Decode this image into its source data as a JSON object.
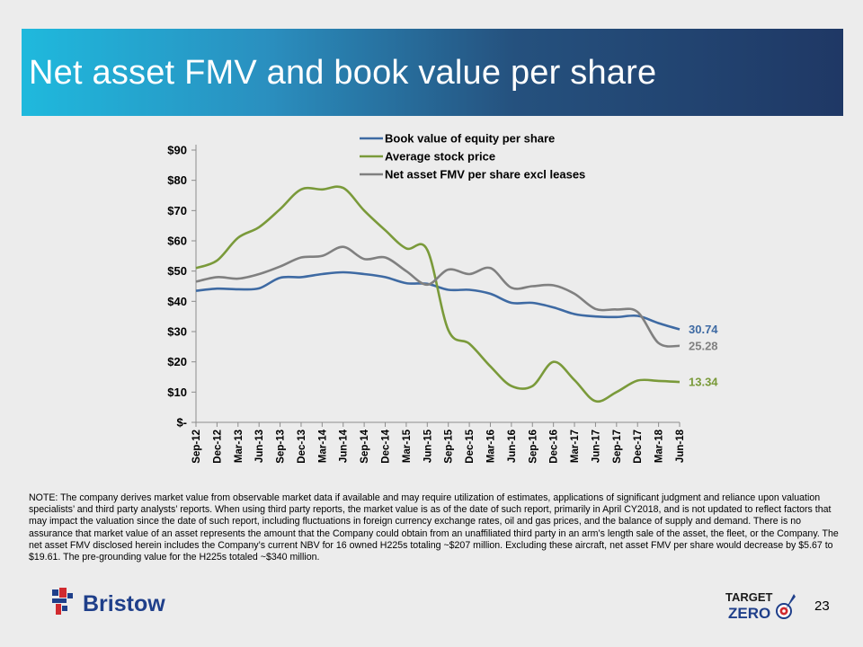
{
  "slide": {
    "title": "Net asset FMV and book value per share",
    "note": "NOTE: The company derives market value from observable market data if available and may require utilization of estimates, applications of significant judgment and reliance upon valuation specialists’ and third party analysts’ reports.  When using third party reports, the market value is as of the date of such report, primarily in April CY2018, and is not updated to reflect factors that may impact the valuation since the date of such report, including fluctuations in foreign currency exchange rates, oil and gas prices, and the balance of supply and demand.  There is no assurance that market value of an asset represents the amount that the Company could obtain from an unaffiliated third party in an arm’s length sale of the asset, the fleet, or the Company. The net asset FMV disclosed herein includes the Company’s current NBV for 16 owned H225s totaling ~$207 million. Excluding these aircraft, net asset FMV per share would decrease by $5.67 to $19.61. The pre-grounding value for the H225s totaled ~$340 million.",
    "page_number": "23",
    "logo_text": "Bristow",
    "badge_line1": "TARGET",
    "badge_line2": "ZERO"
  },
  "chart_data": {
    "type": "line",
    "categories": [
      "Sep-12",
      "Dec-12",
      "Mar-13",
      "Jun-13",
      "Sep-13",
      "Dec-13",
      "Mar-14",
      "Jun-14",
      "Sep-14",
      "Dec-14",
      "Mar-15",
      "Jun-15",
      "Sep-15",
      "Dec-15",
      "Mar-16",
      "Jun-16",
      "Sep-16",
      "Dec-16",
      "Mar-17",
      "Jun-17",
      "Sep-17",
      "Dec-17",
      "Mar-18",
      "Jun-18"
    ],
    "y_ticks": [
      "$-",
      "$10",
      "$20",
      "$30",
      "$40",
      "$50",
      "$60",
      "$70",
      "$80",
      "$90"
    ],
    "ylim": [
      0,
      90
    ],
    "grid": false,
    "legend_position": "top",
    "series": [
      {
        "name": "Book value of equity per share",
        "color": "#3e6aa3",
        "values": [
          43.5,
          44.2,
          44,
          44.3,
          47.8,
          48,
          49,
          49.6,
          49,
          48,
          46,
          45.8,
          43.8,
          43.8,
          42.5,
          39.5,
          39.5,
          38,
          35.8,
          35,
          34.8,
          35.2,
          32.8,
          30.74
        ],
        "end_label": "30.74"
      },
      {
        "name": "Average stock price",
        "color": "#7a9a3a",
        "values": [
          51,
          53.5,
          61,
          64.5,
          70.5,
          77,
          77,
          77.5,
          70,
          63.5,
          57.5,
          57,
          30.5,
          26,
          18.5,
          12,
          12,
          20,
          14,
          7,
          10,
          13.8,
          13.7,
          13.34
        ],
        "end_label": "13.34"
      },
      {
        "name": "Net asset FMV per share excl leases",
        "color": "#808080",
        "values": [
          46.5,
          48,
          47.5,
          49,
          51.5,
          54.5,
          55,
          58,
          54,
          54.5,
          50,
          45.5,
          50.5,
          49,
          51,
          44.5,
          45,
          45.3,
          42.5,
          37.5,
          37.3,
          36.5,
          26.2,
          25.28
        ],
        "end_label": "25.28"
      }
    ]
  }
}
